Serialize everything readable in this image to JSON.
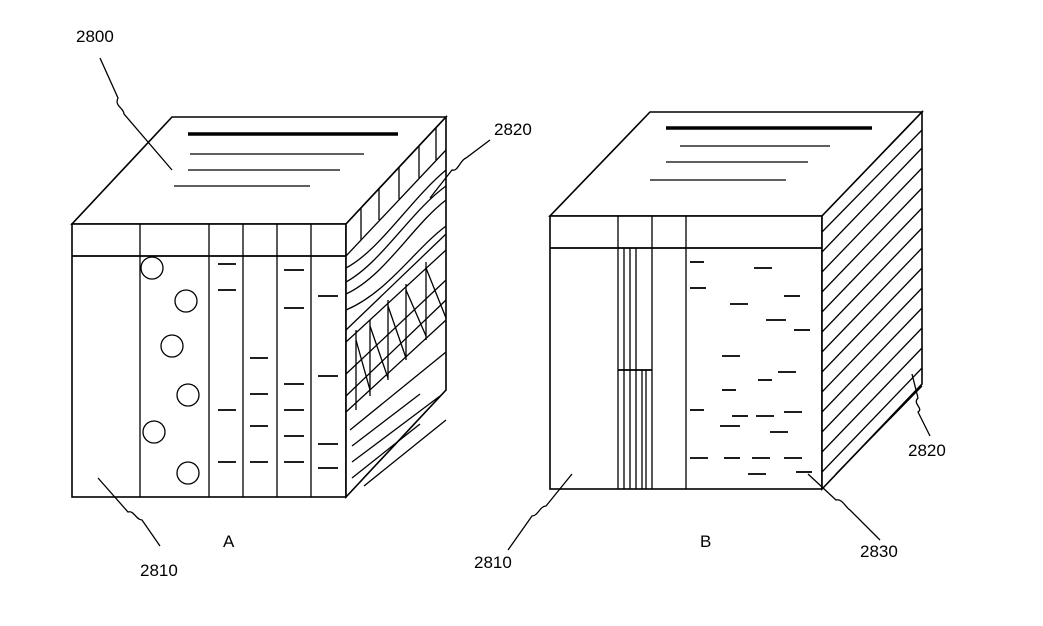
{
  "figure": {
    "labels": {
      "label_2800": "2800",
      "label_2820_a": "2820",
      "label_2810_a": "2810",
      "panel_a": "A",
      "label_2810_b": "2810",
      "panel_b": "B",
      "label_2830": "2830",
      "label_2820_b": "2820"
    }
  }
}
